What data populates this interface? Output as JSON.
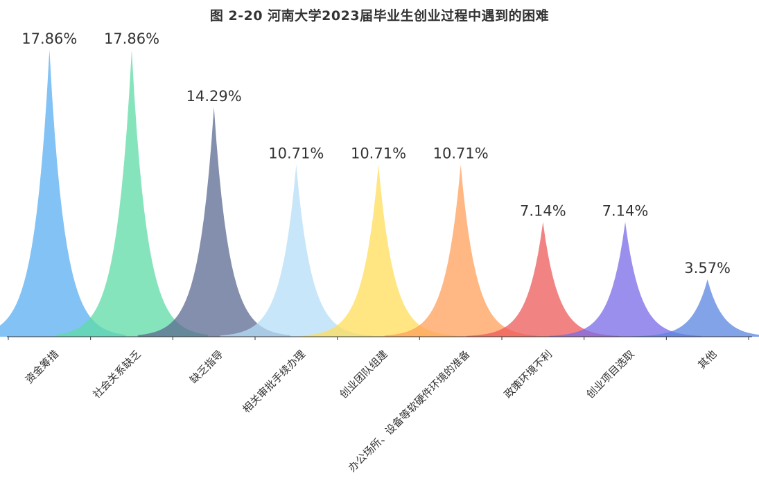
{
  "chart_data": {
    "type": "area",
    "title": "图 2-20 河南大学2023届毕业生创业过程中遇到的困难",
    "categories": [
      "资金筹措",
      "社会关系缺乏",
      "缺乏指导",
      "相关审批手续办理",
      "创业团队组建",
      "办公场所、设备等软硬件环境的准备",
      "政策环境不利",
      "创业项目选取",
      "其他"
    ],
    "values": [
      17.86,
      17.86,
      14.29,
      10.71,
      10.71,
      10.71,
      7.14,
      7.14,
      3.57
    ],
    "value_labels": [
      "17.86%",
      "17.86%",
      "14.29%",
      "10.71%",
      "10.71%",
      "10.71%",
      "7.14%",
      "7.14%",
      "3.57%"
    ],
    "unit": "%",
    "ylim": [
      0,
      17.86
    ],
    "grid": false,
    "legend": "none",
    "colors": [
      "#5AAEF0",
      "#5DDBA6",
      "#5A6A90",
      "#B5DDF8",
      "#FFDE5A",
      "#FF9F5A",
      "#EE5A5A",
      "#7A6AE8",
      "#5A84E0"
    ]
  }
}
